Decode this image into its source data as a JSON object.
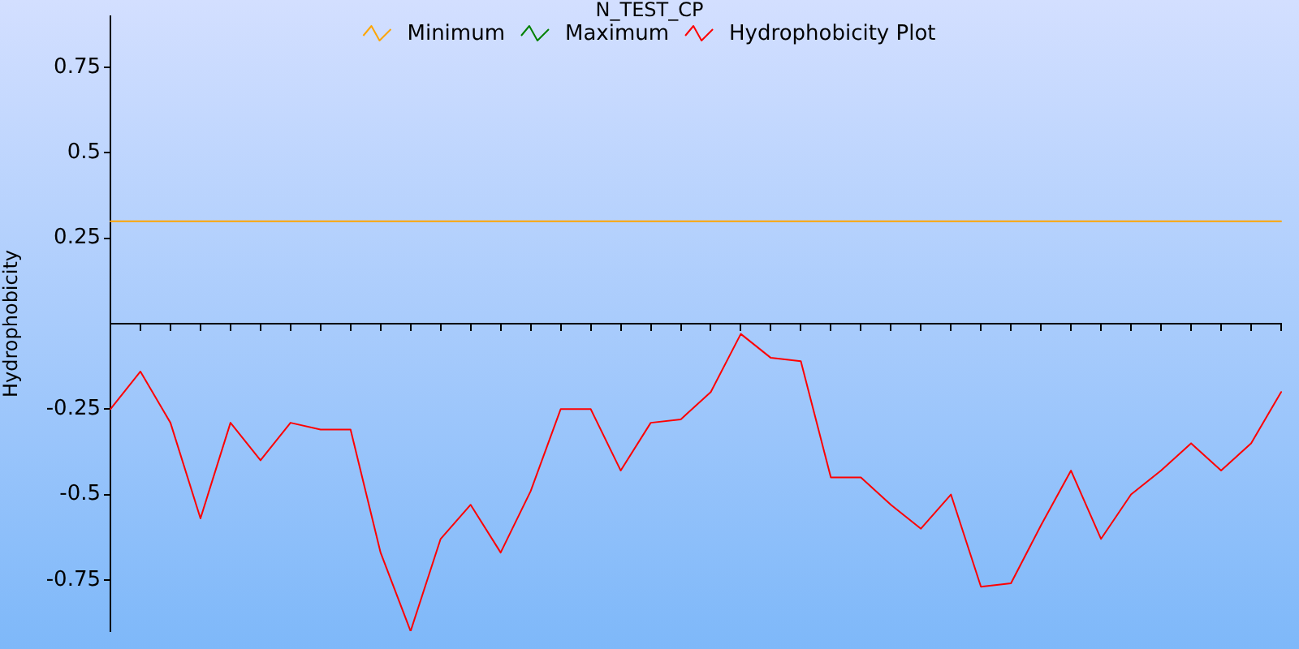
{
  "chart_data": {
    "type": "line",
    "title": "N_TEST_CP",
    "ylabel": "Hydrophobicity",
    "categories": [
      null,
      null,
      null,
      null,
      null,
      null,
      null,
      null,
      null,
      null,
      null,
      null,
      null,
      null,
      null,
      null,
      null,
      null,
      null,
      null,
      null,
      null,
      null,
      null,
      null,
      null,
      null,
      null,
      null,
      null,
      null,
      null,
      null,
      null,
      null,
      null,
      null,
      null,
      null,
      null
    ],
    "series": [
      {
        "name": "Minimum",
        "color": "#ffa500",
        "values": [
          0.3,
          0.3,
          0.3,
          0.3,
          0.3,
          0.3,
          0.3,
          0.3,
          0.3,
          0.3,
          0.3,
          0.3,
          0.3,
          0.3,
          0.3,
          0.3,
          0.3,
          0.3,
          0.3,
          0.3,
          0.3,
          0.3,
          0.3,
          0.3,
          0.3,
          0.3,
          0.3,
          0.3,
          0.3,
          0.3,
          0.3,
          0.3,
          0.3,
          0.3,
          0.3,
          0.3,
          0.3,
          0.3,
          0.3,
          0.3
        ]
      },
      {
        "name": "Maximum",
        "color": "#008000",
        "values": [
          null,
          null,
          null,
          null,
          null,
          null,
          null,
          null,
          null,
          null,
          null,
          null,
          null,
          null,
          null,
          null,
          null,
          null,
          null,
          null,
          null,
          null,
          null,
          null,
          null,
          null,
          null,
          null,
          null,
          null,
          null,
          null,
          null,
          null,
          null,
          null,
          null,
          null,
          null,
          null
        ]
      },
      {
        "name": "Hydrophobicity Plot",
        "color": "#ff0000",
        "values": [
          -0.25,
          -0.14,
          -0.29,
          -0.57,
          -0.29,
          -0.4,
          -0.29,
          -0.31,
          -0.31,
          -0.67,
          -0.9,
          -0.63,
          -0.53,
          -0.67,
          -0.49,
          -0.25,
          -0.25,
          -0.43,
          -0.29,
          -0.28,
          -0.2,
          -0.03,
          -0.1,
          -0.11,
          -0.45,
          -0.45,
          -0.53,
          -0.6,
          -0.5,
          -0.77,
          -0.76,
          -0.59,
          -0.43,
          -0.63,
          -0.5,
          -0.43,
          -0.35,
          -0.43,
          -0.35,
          -0.2
        ]
      }
    ],
    "ylim": [
      -0.9,
      0.9
    ],
    "yticks": [
      -0.75,
      -0.5,
      -0.25,
      0.25,
      0.5,
      0.75
    ],
    "legend": "top",
    "marker": "none",
    "line_style": "solid"
  }
}
